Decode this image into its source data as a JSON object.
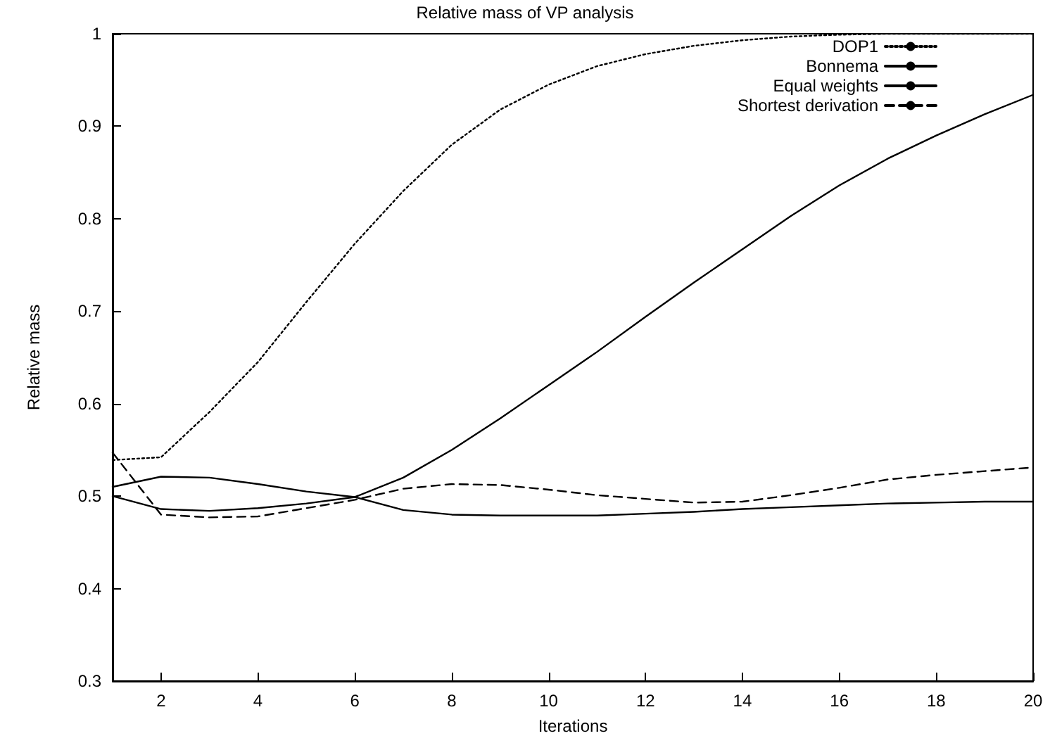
{
  "chart_data": {
    "type": "line",
    "title": "Relative mass of VP analysis",
    "xlabel": "Iterations",
    "ylabel": "Relative mass",
    "x": [
      1,
      2,
      3,
      4,
      5,
      6,
      7,
      8,
      9,
      10,
      11,
      12,
      13,
      14,
      15,
      16,
      17,
      18,
      19,
      20
    ],
    "series": [
      {
        "name": "DOP1",
        "color": "#000000",
        "line_style": "dotted",
        "values": [
          0.539,
          0.542,
          0.591,
          0.645,
          0.71,
          0.773,
          0.83,
          0.88,
          0.918,
          0.945,
          0.965,
          0.978,
          0.987,
          0.993,
          0.997,
          0.999,
          1.0,
          1.0,
          1.0,
          1.0
        ]
      },
      {
        "name": "Bonnema",
        "color": "#000000",
        "line_style": "solid",
        "values": [
          0.51,
          0.521,
          0.52,
          0.513,
          0.505,
          0.499,
          0.52,
          0.55,
          0.584,
          0.62,
          0.656,
          0.694,
          0.731,
          0.767,
          0.803,
          0.836,
          0.865,
          0.89,
          0.913,
          0.934
        ]
      },
      {
        "name": "Equal weights",
        "color": "#000000",
        "line_style": "solid",
        "values": [
          0.5,
          0.486,
          0.484,
          0.487,
          0.492,
          0.499,
          0.485,
          0.48,
          0.479,
          0.479,
          0.479,
          0.481,
          0.483,
          0.486,
          0.488,
          0.49,
          0.492,
          0.493,
          0.494,
          0.494
        ]
      },
      {
        "name": "Shortest derivation",
        "color": "#000000",
        "line_style": "dashed",
        "values": [
          0.547,
          0.48,
          0.477,
          0.478,
          0.487,
          0.496,
          0.508,
          0.513,
          0.512,
          0.507,
          0.501,
          0.497,
          0.493,
          0.494,
          0.501,
          0.509,
          0.518,
          0.523,
          0.527,
          0.531
        ]
      }
    ],
    "xlim": [
      1,
      20
    ],
    "xticks": [
      2,
      4,
      6,
      8,
      10,
      12,
      14,
      16,
      18,
      20
    ],
    "ylim": [
      0.3,
      1
    ],
    "yticks": [
      0.3,
      0.4,
      0.5,
      0.6,
      0.7,
      0.8,
      0.9,
      1
    ],
    "grid": false,
    "legend": "top right",
    "marker": "none"
  }
}
